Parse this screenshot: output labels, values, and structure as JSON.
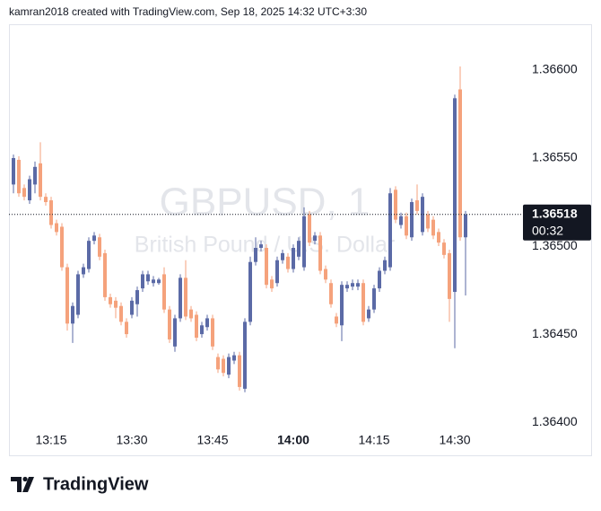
{
  "chart_data": {
    "type": "candlestick",
    "header": "kamran2018 created with TradingView.com, Sep 18, 2025 14:32 UTC+3:30",
    "watermark_symbol": "GBPUSD, 1",
    "watermark_name": "British Pound / U.S. Dollar",
    "brand": "TradingView",
    "categories": [
      "13:08",
      "13:09",
      "13:10",
      "13:11",
      "13:12",
      "13:13",
      "13:14",
      "13:15",
      "13:16",
      "13:17",
      "13:18",
      "13:19",
      "13:20",
      "13:21",
      "13:22",
      "13:23",
      "13:24",
      "13:25",
      "13:26",
      "13:27",
      "13:28",
      "13:29",
      "13:30",
      "13:31",
      "13:32",
      "13:33",
      "13:34",
      "13:35",
      "13:36",
      "13:37",
      "13:38",
      "13:39",
      "13:40",
      "13:41",
      "13:42",
      "13:43",
      "13:44",
      "13:45",
      "13:46",
      "13:47",
      "13:48",
      "13:49",
      "13:50",
      "13:51",
      "13:52",
      "13:53",
      "13:54",
      "13:55",
      "13:56",
      "13:57",
      "13:58",
      "13:59",
      "14:00",
      "14:01",
      "14:02",
      "14:03",
      "14:04",
      "14:05",
      "14:06",
      "14:07",
      "14:08",
      "14:09",
      "14:10",
      "14:11",
      "14:12",
      "14:13",
      "14:14",
      "14:15",
      "14:16",
      "14:17",
      "14:18",
      "14:19",
      "14:20",
      "14:21",
      "14:22",
      "14:23",
      "14:24",
      "14:25",
      "14:26",
      "14:27",
      "14:28",
      "14:29",
      "14:30",
      "14:31",
      "14:32"
    ],
    "open": [
      1.36535,
      1.36549,
      1.36533,
      1.36526,
      1.36535,
      1.36547,
      1.36528,
      1.36526,
      1.36513,
      1.36511,
      1.36488,
      1.36456,
      1.36461,
      1.36484,
      1.36487,
      1.36503,
      1.36505,
      1.36496,
      1.36471,
      1.36469,
      1.36466,
      1.36457,
      1.36461,
      1.36467,
      1.36476,
      1.3648,
      1.36479,
      1.36479,
      1.36484,
      1.36464,
      1.36443,
      1.36459,
      1.36482,
      1.36464,
      1.36461,
      1.3645,
      1.36454,
      1.36459,
      1.36437,
      1.36436,
      1.36427,
      1.36435,
      1.36438,
      1.36419,
      1.36457,
      1.36491,
      1.36499,
      1.36499,
      1.36481,
      1.36479,
      1.36492,
      1.36494,
      1.36487,
      1.36494,
      1.36488,
      1.36518,
      1.36503,
      1.36506,
      1.36487,
      1.36479,
      1.3646,
      1.36455,
      1.36476,
      1.36477,
      1.36477,
      1.36479,
      1.36459,
      1.36464,
      1.36476,
      1.36486,
      1.36488,
      1.36532,
      1.36512,
      1.36517,
      1.36505,
      1.36526,
      1.36508,
      1.36518,
      1.36515,
      1.36508,
      1.36502,
      1.36496,
      1.36474,
      1.36589,
      1.36505
    ],
    "high": [
      1.36552,
      1.36551,
      1.36535,
      1.3654,
      1.36548,
      1.36559,
      1.3653,
      1.36528,
      1.36515,
      1.36513,
      1.3649,
      1.36468,
      1.36486,
      1.3649,
      1.36505,
      1.36508,
      1.36507,
      1.36498,
      1.36473,
      1.36471,
      1.36468,
      1.36459,
      1.36471,
      1.36477,
      1.36486,
      1.36486,
      1.36483,
      1.36482,
      1.36488,
      1.36466,
      1.36461,
      1.36484,
      1.36492,
      1.36466,
      1.36463,
      1.36457,
      1.36461,
      1.36461,
      1.36439,
      1.36438,
      1.36439,
      1.3644,
      1.3644,
      1.36459,
      1.36494,
      1.36505,
      1.36503,
      1.36501,
      1.36483,
      1.36494,
      1.36498,
      1.36496,
      1.36501,
      1.36505,
      1.36522,
      1.3652,
      1.36508,
      1.36508,
      1.36489,
      1.36481,
      1.36462,
      1.3648,
      1.3648,
      1.36481,
      1.36481,
      1.36481,
      1.36466,
      1.36478,
      1.36488,
      1.36494,
      1.36533,
      1.36534,
      1.36519,
      1.36519,
      1.36527,
      1.36535,
      1.3653,
      1.3652,
      1.36517,
      1.3651,
      1.36504,
      1.36498,
      1.36586,
      1.36602,
      1.3652
    ],
    "low": [
      1.3653,
      1.36528,
      1.36526,
      1.36524,
      1.3653,
      1.36526,
      1.36523,
      1.3651,
      1.36506,
      1.36486,
      1.36452,
      1.36445,
      1.36459,
      1.36482,
      1.36485,
      1.36501,
      1.36492,
      1.36469,
      1.36465,
      1.36459,
      1.36455,
      1.36448,
      1.36459,
      1.3646,
      1.36474,
      1.36478,
      1.36477,
      1.36478,
      1.36462,
      1.36445,
      1.3644,
      1.36457,
      1.36458,
      1.36457,
      1.36446,
      1.36448,
      1.36452,
      1.36441,
      1.36428,
      1.36426,
      1.36425,
      1.36433,
      1.36418,
      1.36417,
      1.36455,
      1.36489,
      1.36497,
      1.36476,
      1.36474,
      1.36477,
      1.3649,
      1.36485,
      1.36485,
      1.36492,
      1.36486,
      1.365,
      1.36501,
      1.36484,
      1.36479,
      1.36465,
      1.36454,
      1.36446,
      1.36474,
      1.36475,
      1.36475,
      1.36455,
      1.36457,
      1.36462,
      1.36474,
      1.36484,
      1.36486,
      1.36513,
      1.3651,
      1.36504,
      1.36503,
      1.36518,
      1.36506,
      1.36508,
      1.36504,
      1.365,
      1.36493,
      1.36457,
      1.36442,
      1.36503,
      1.36472
    ],
    "close": [
      1.3655,
      1.3653,
      1.36528,
      1.36538,
      1.36545,
      1.36528,
      1.36525,
      1.36512,
      1.36508,
      1.36488,
      1.36456,
      1.36466,
      1.36484,
      1.36488,
      1.36503,
      1.36506,
      1.36494,
      1.36471,
      1.36467,
      1.36465,
      1.36457,
      1.3645,
      1.36469,
      1.36475,
      1.36484,
      1.36484,
      1.36481,
      1.36481,
      1.36464,
      1.36447,
      1.36459,
      1.36482,
      1.3646,
      1.36459,
      1.36448,
      1.36455,
      1.36459,
      1.36443,
      1.3643,
      1.36428,
      1.36437,
      1.36438,
      1.3642,
      1.36457,
      1.36491,
      1.36499,
      1.36501,
      1.36478,
      1.36476,
      1.36492,
      1.36496,
      1.36487,
      1.36499,
      1.36503,
      1.36517,
      1.36502,
      1.36506,
      1.36486,
      1.36481,
      1.36467,
      1.36456,
      1.36478,
      1.36478,
      1.36479,
      1.36479,
      1.36457,
      1.36464,
      1.36476,
      1.36486,
      1.36492,
      1.3653,
      1.36515,
      1.36517,
      1.36506,
      1.36525,
      1.3652,
      1.36528,
      1.3651,
      1.36506,
      1.36502,
      1.36495,
      1.3647,
      1.36584,
      1.36505,
      1.36518
    ],
    "up_color": "#5b6aa6",
    "down_color": "#f5a27c",
    "ylim": [
      1.36397,
      1.36626
    ],
    "yticks": [
      {
        "value": 1.366,
        "label": "1.36600"
      },
      {
        "value": 1.3655,
        "label": "1.36550"
      },
      {
        "value": 1.365,
        "label": "1.36500"
      },
      {
        "value": 1.3645,
        "label": "1.36450"
      },
      {
        "value": 1.364,
        "label": "1.36400"
      }
    ],
    "xticks": [
      "13:15",
      "13:30",
      "13:45",
      "14:00",
      "14:15",
      "14:30"
    ],
    "last_price": 1.36518,
    "countdown": "00:32"
  }
}
